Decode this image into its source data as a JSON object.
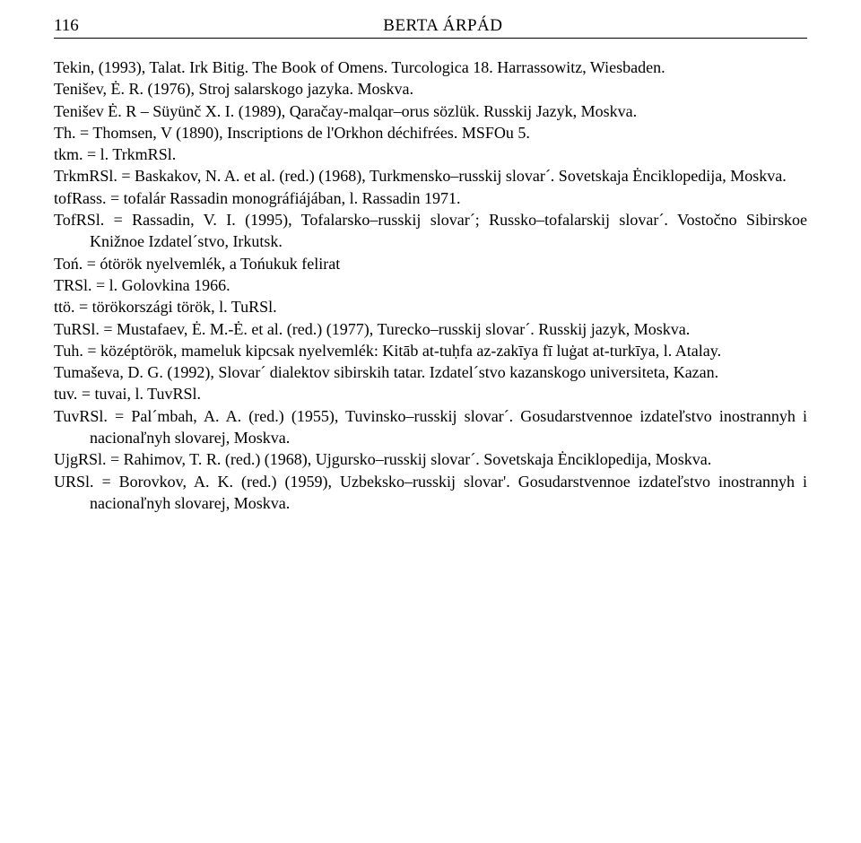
{
  "header": {
    "page_number": "116",
    "running_title": "BERTA ÁRPÁD"
  },
  "entries": [
    "Tekin, (1993), Talat. Irk Bitig. The Book of Omens. Turcologica 18. Harrassowitz, Wiesbaden.",
    "Tenišev, Ė. R. (1976), Stroj salarskogo jazyka. Moskva.",
    "Tenišev Ė. R – Süyünč X. I. (1989), Qaračay-malqar–orus sözlük. Russkij Jazyk, Moskva.",
    "Th. = Thomsen, V (1890), Inscriptions de l'Orkhon déchifrées. MSFOu 5.",
    "tkm. = l. TrkmRSl.",
    "TrkmRSl. = Baskakov, N. A. et al. (red.) (1968), Turkmensko–russkij slovar´. Sovetskaja Ėnciklopedija, Moskva.",
    "tofRass. = tofalár Rassadin monográfiájában, l. Rassadin 1971.",
    "TofRSl. = Rassadin, V. I. (1995), Tofalarsko–russkij slovar´; Russko–tofalarskij slovar´. Vostočno Sibirskoe Knižnoe Izdatel´stvo, Irkutsk.",
    "Toń. = ótörök nyelvemlék, a Tońukuk felirat",
    "TRSl. = l. Golovkina 1966.",
    "ttö. = törökországi török, l. TuRSl.",
    "TuRSl. = Mustafaev, Ė. M.-Ė. et al. (red.) (1977), Turecko–russkij slovar´. Russkij jazyk, Moskva.",
    "Tuh. = középtörök, mameluk kipcsak nyelvemlék: Kitāb at-tuḥfa az-zakīya fī luġat at-turkīya, l. Atalay.",
    "Tumaševa, D. G. (1992), Slovar´ dialektov sibirskih tatar. Izdatel´stvo kazanskogo universiteta, Kazan.",
    "tuv. = tuvai, l. TuvRSl.",
    "TuvRSl. = Pal´mbah, A. A. (red.) (1955), Tuvinsko–russkij slovar´. Gosudarstvennoe izdateľstvo inostrannyh i nacionaľnyh slovarej, Moskva.",
    "UjgRSl. = Rahimov, T. R. (red.) (1968), Ujgursko–russkij slovar´. Sovetskaja Ėnciklopedija, Moskva.",
    "URSl. = Borovkov, A. K. (red.) (1959), Uzbeksko–russkij slovar'. Gosudarstvennoe izdateľstvo inostrannyh i nacionaľnyh slovarej, Moskva."
  ]
}
